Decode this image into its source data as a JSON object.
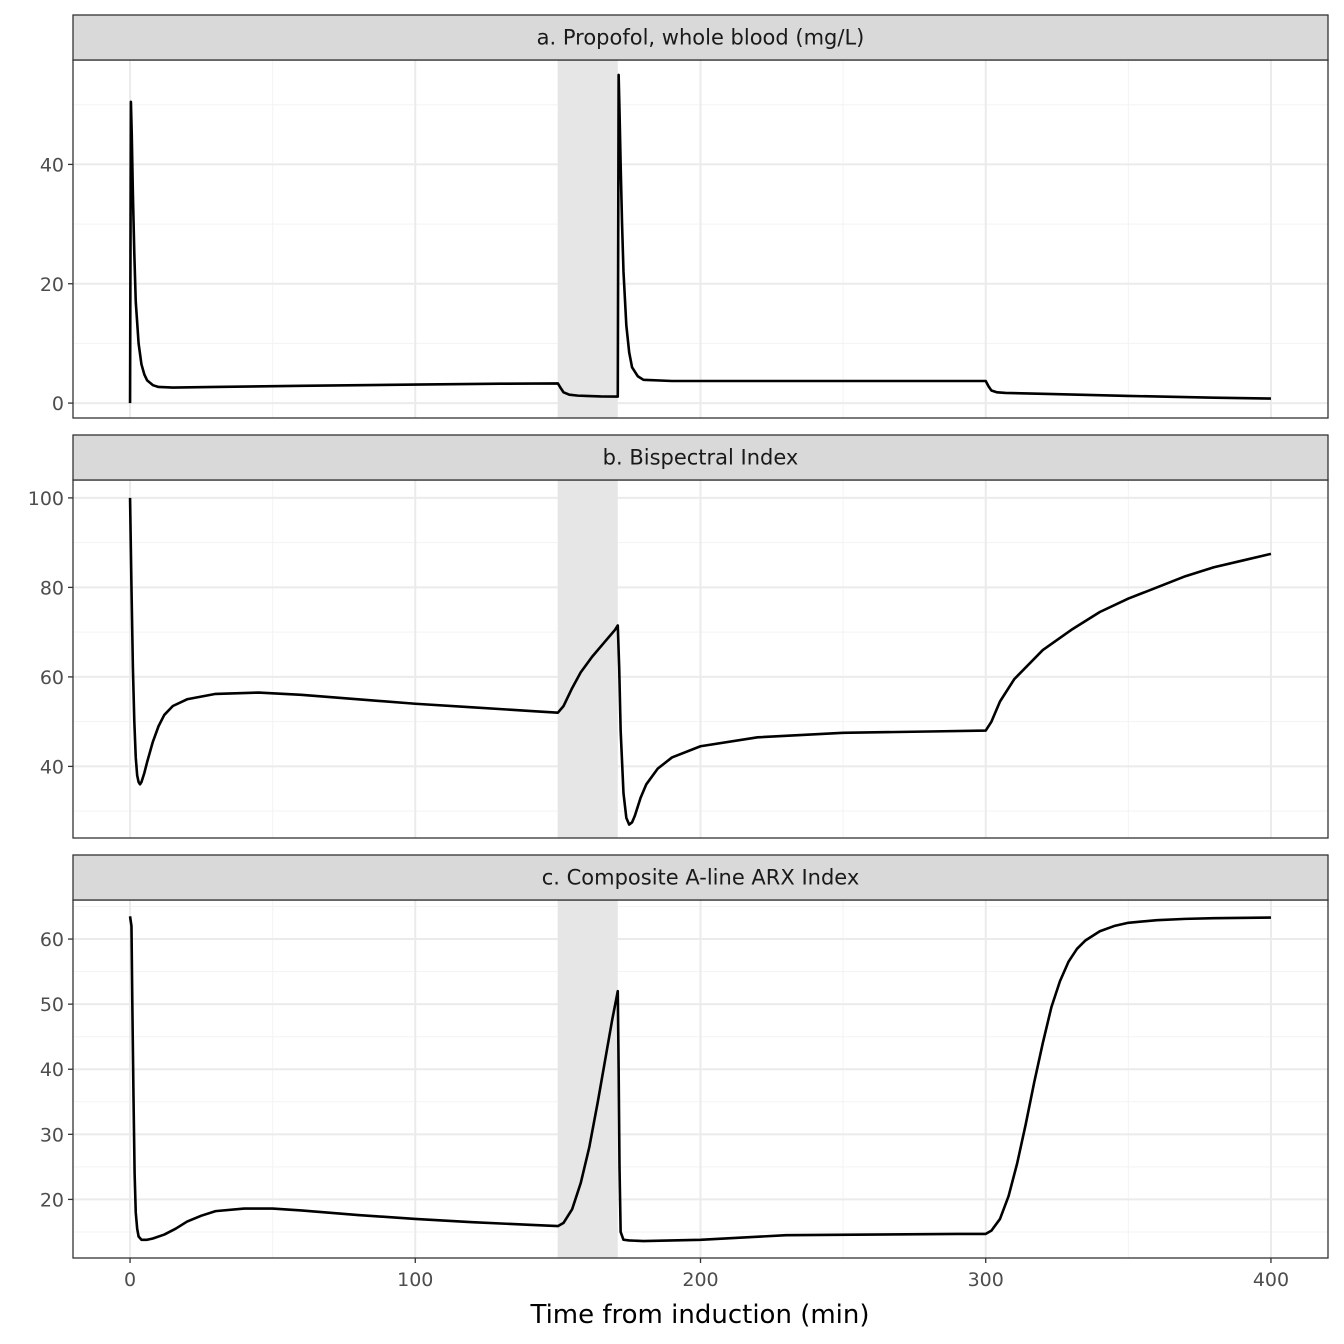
{
  "chart_data": {
    "type": "line",
    "layout": "facet-vertical",
    "xlabel": "Time from induction (min)",
    "xlim": [
      -20,
      420
    ],
    "x_ticks": [
      0,
      100,
      200,
      300,
      400
    ],
    "shaded_interval": [
      150,
      171
    ],
    "colors": {
      "line": "#000000",
      "shade": "#e6e6e6",
      "strip": "#d9d9d9",
      "grid": "#ebebeb"
    },
    "panels": [
      {
        "title": "a. Propofol, whole blood (mg/L)",
        "ylim": [
          -2.5,
          57.5
        ],
        "y_ticks": [
          0,
          20,
          40
        ],
        "series": [
          {
            "x": [
              0,
              0.3,
              0.6,
              1,
              1.5,
              2,
              3,
              4,
              5,
              6,
              8,
              10,
              15,
              30,
              60,
              100,
              130,
              150,
              151,
              152,
              154,
              157,
              160,
              165,
              170,
              171,
              171.3,
              171.6,
              172,
              172.5,
              173,
              174,
              175,
              176,
              178,
              180,
              190,
              220,
              260,
              300,
              301,
              302,
              304,
              307,
              320,
              350,
              380,
              400
            ],
            "y": [
              0,
              50.5,
              45,
              35,
              25,
              17,
              10,
              6.5,
              4.8,
              3.8,
              3.0,
              2.7,
              2.6,
              2.7,
              2.9,
              3.1,
              3.25,
              3.3,
              2.5,
              1.8,
              1.4,
              1.25,
              1.2,
              1.12,
              1.1,
              1.1,
              55,
              49,
              40,
              30,
              22,
              13,
              8.5,
              6,
              4.5,
              3.9,
              3.7,
              3.7,
              3.7,
              3.7,
              2.8,
              2.1,
              1.8,
              1.7,
              1.55,
              1.2,
              0.9,
              0.75
            ]
          }
        ]
      },
      {
        "title": "b. Bispectral Index",
        "ylim": [
          24,
          104
        ],
        "y_ticks": [
          40,
          60,
          80,
          100
        ],
        "series": [
          {
            "x": [
              0,
              0.5,
              1,
              1.5,
              2,
              2.5,
              3,
              3.5,
              4,
              5,
              6,
              8,
              10,
              12,
              15,
              20,
              30,
              45,
              60,
              80,
              100,
              120,
              140,
              150,
              152,
              155,
              158,
              162,
              166,
              170,
              171,
              171.5,
              172,
              173,
              174,
              175,
              176,
              177,
              179,
              181,
              185,
              190,
              200,
              220,
              250,
              280,
              300,
              302,
              305,
              310,
              320,
              330,
              340,
              350,
              360,
              370,
              380,
              390,
              400
            ],
            "y": [
              100,
              80,
              62,
              50,
              42,
              38,
              36.5,
              36,
              36.5,
              38.5,
              41,
              45.5,
              49,
              51.5,
              53.5,
              55,
              56.2,
              56.5,
              56,
              55,
              54,
              53.2,
              52.4,
              52,
              53.5,
              57.5,
              61,
              64.5,
              67.5,
              70.5,
              71.5,
              62,
              48,
              34,
              28.5,
              27,
              27.5,
              29,
              33,
              36,
              39.5,
              42,
              44.5,
              46.5,
              47.5,
              47.8,
              48,
              50,
              54.5,
              59.5,
              66,
              70.5,
              74.5,
              77.5,
              80,
              82.5,
              84.5,
              86,
              87.5
            ]
          }
        ]
      },
      {
        "title": "c. Composite A-line ARX Index",
        "ylim": [
          11,
          66
        ],
        "y_ticks": [
          20,
          30,
          40,
          50,
          60
        ],
        "series": [
          {
            "x": [
              0,
              0.5,
              0.8,
              1.2,
              1.6,
              2,
              2.5,
              3,
              4,
              6,
              8,
              12,
              16,
              20,
              25,
              30,
              40,
              50,
              60,
              80,
              100,
              120,
              140,
              150,
              152,
              155,
              158,
              161,
              164,
              167,
              169,
              171,
              171.3,
              171.6,
              172,
              173,
              175,
              180,
              200,
              230,
              260,
              290,
              300,
              302,
              305,
              308,
              311,
              314,
              317,
              320,
              323,
              326,
              329,
              332,
              335,
              340,
              345,
              350,
              360,
              370,
              380,
              400
            ],
            "y": [
              63.5,
              62,
              50,
              36,
              24,
              18,
              15.5,
              14.3,
              13.8,
              13.8,
              14,
              14.6,
              15.5,
              16.6,
              17.5,
              18.2,
              18.6,
              18.6,
              18.3,
              17.6,
              17,
              16.5,
              16.1,
              15.9,
              16.4,
              18.5,
              22.5,
              28,
              35,
              42.5,
              47.5,
              52,
              40,
              25,
              15,
              13.8,
              13.7,
              13.6,
              13.8,
              14.5,
              14.6,
              14.7,
              14.7,
              15.2,
              17,
              20.5,
              25.5,
              31.5,
              38,
              44,
              49.5,
              53.5,
              56.5,
              58.5,
              59.8,
              61.2,
              62,
              62.5,
              62.9,
              63.1,
              63.2,
              63.3
            ]
          }
        ]
      }
    ]
  }
}
